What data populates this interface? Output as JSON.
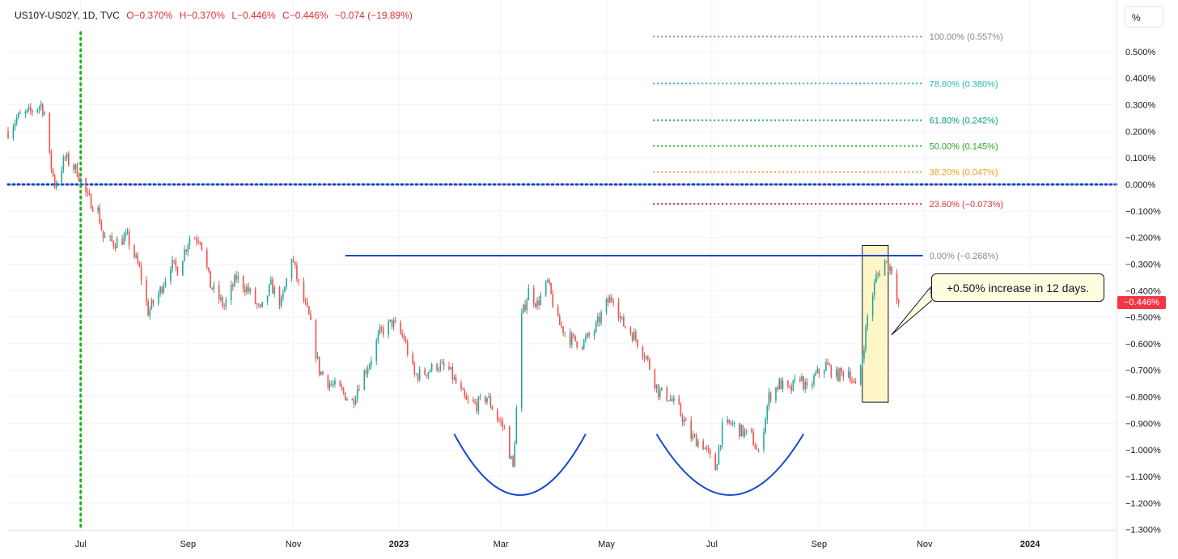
{
  "header": {
    "symbol": "US10Y-US02Y, 1D, TVC",
    "open": "O−0.370%",
    "high": "H−0.370%",
    "low": "L−0.446%",
    "close": "C−0.446%",
    "change": "−0.074 (−19.89%)"
  },
  "unit_label": "%",
  "last_price_label": "−0.446%",
  "callout_text": "+0.50% increase in 12 days.",
  "colors": {
    "up": "#26a69a",
    "down": "#ef5350",
    "annotation": "#1848d0",
    "zero_line": "#1848d0",
    "event_line": "#22b022",
    "callout_fill": "#fffde0",
    "price_tag": "#f23645"
  },
  "chart_data": {
    "type": "candlestick",
    "title": "",
    "xlabel": "",
    "ylabel": "",
    "ylim": [
      -1.3,
      0.6
    ],
    "y_ticks": [
      {
        "value": 0.5,
        "label": "0.500%"
      },
      {
        "value": 0.4,
        "label": "0.400%"
      },
      {
        "value": 0.3,
        "label": "0.300%"
      },
      {
        "value": 0.2,
        "label": "0.200%"
      },
      {
        "value": 0.1,
        "label": "0.100%"
      },
      {
        "value": 0.0,
        "label": "0.000%"
      },
      {
        "value": -0.1,
        "label": "−0.100%"
      },
      {
        "value": -0.2,
        "label": "−0.200%"
      },
      {
        "value": -0.3,
        "label": "−0.300%"
      },
      {
        "value": -0.4,
        "label": "−0.400%"
      },
      {
        "value": -0.5,
        "label": "−0.500%"
      },
      {
        "value": -0.6,
        "label": "−0.600%"
      },
      {
        "value": -0.7,
        "label": "−0.700%"
      },
      {
        "value": -0.8,
        "label": "−0.800%"
      },
      {
        "value": -0.9,
        "label": "−0.900%"
      },
      {
        "value": -1.0,
        "label": "−1.000%"
      },
      {
        "value": -1.1,
        "label": "−1.100%"
      },
      {
        "value": -1.2,
        "label": "−1.200%"
      },
      {
        "value": -1.3,
        "label": "−1.300%"
      }
    ],
    "x_range": [
      "2022-05-20",
      "2024-02-20"
    ],
    "x_ticks": [
      {
        "date": "2022-07-01",
        "label": "Jul"
      },
      {
        "date": "2022-09-01",
        "label": "Sep"
      },
      {
        "date": "2022-11-01",
        "label": "Nov"
      },
      {
        "date": "2023-01-01",
        "label": "2023"
      },
      {
        "date": "2023-03-01",
        "label": "Mar"
      },
      {
        "date": "2023-05-01",
        "label": "May"
      },
      {
        "date": "2023-07-01",
        "label": "Jul"
      },
      {
        "date": "2023-09-01",
        "label": "Sep"
      },
      {
        "date": "2023-11-01",
        "label": "Nov"
      },
      {
        "date": "2024-01-01",
        "label": "2024"
      }
    ],
    "series_path": [
      [
        "2022-05-20",
        0.2
      ],
      [
        "2022-05-25",
        0.25
      ],
      [
        "2022-06-01",
        0.27
      ],
      [
        "2022-06-08",
        0.3
      ],
      [
        "2022-06-10",
        0.27
      ],
      [
        "2022-06-13",
        0.1
      ],
      [
        "2022-06-16",
        0.0
      ],
      [
        "2022-06-22",
        0.1
      ],
      [
        "2022-06-29",
        0.05
      ],
      [
        "2022-07-05",
        -0.05
      ],
      [
        "2022-07-11",
        -0.1
      ],
      [
        "2022-07-14",
        -0.2
      ],
      [
        "2022-07-20",
        -0.22
      ],
      [
        "2022-07-28",
        -0.2
      ],
      [
        "2022-08-04",
        -0.32
      ],
      [
        "2022-08-09",
        -0.48
      ],
      [
        "2022-08-16",
        -0.4
      ],
      [
        "2022-08-22",
        -0.3
      ],
      [
        "2022-08-26",
        -0.32
      ],
      [
        "2022-09-02",
        -0.2
      ],
      [
        "2022-09-08",
        -0.2
      ],
      [
        "2022-09-14",
        -0.38
      ],
      [
        "2022-09-22",
        -0.46
      ],
      [
        "2022-09-29",
        -0.35
      ],
      [
        "2022-10-06",
        -0.4
      ],
      [
        "2022-10-13",
        -0.48
      ],
      [
        "2022-10-19",
        -0.38
      ],
      [
        "2022-10-25",
        -0.45
      ],
      [
        "2022-10-31",
        -0.27
      ],
      [
        "2022-11-04",
        -0.38
      ],
      [
        "2022-11-10",
        -0.5
      ],
      [
        "2022-11-16",
        -0.7
      ],
      [
        "2022-11-22",
        -0.75
      ],
      [
        "2022-11-29",
        -0.78
      ],
      [
        "2022-12-05",
        -0.82
      ],
      [
        "2022-12-09",
        -0.75
      ],
      [
        "2022-12-15",
        -0.67
      ],
      [
        "2022-12-21",
        -0.56
      ],
      [
        "2022-12-28",
        -0.52
      ],
      [
        "2023-01-04",
        -0.58
      ],
      [
        "2023-01-10",
        -0.72
      ],
      [
        "2023-01-16",
        -0.71
      ],
      [
        "2023-01-23",
        -0.68
      ],
      [
        "2023-01-30",
        -0.7
      ],
      [
        "2023-02-03",
        -0.75
      ],
      [
        "2023-02-09",
        -0.82
      ],
      [
        "2023-02-15",
        -0.83
      ],
      [
        "2023-02-21",
        -0.8
      ],
      [
        "2023-02-27",
        -0.88
      ],
      [
        "2023-03-03",
        -0.92
      ],
      [
        "2023-03-08",
        -1.07
      ],
      [
        "2023-03-10",
        -0.85
      ],
      [
        "2023-03-13",
        -0.5
      ],
      [
        "2023-03-17",
        -0.4
      ],
      [
        "2023-03-22",
        -0.45
      ],
      [
        "2023-03-28",
        -0.37
      ],
      [
        "2023-04-03",
        -0.52
      ],
      [
        "2023-04-10",
        -0.58
      ],
      [
        "2023-04-17",
        -0.6
      ],
      [
        "2023-04-24",
        -0.55
      ],
      [
        "2023-05-01",
        -0.45
      ],
      [
        "2023-05-05",
        -0.42
      ],
      [
        "2023-05-10",
        -0.52
      ],
      [
        "2023-05-17",
        -0.57
      ],
      [
        "2023-05-24",
        -0.65
      ],
      [
        "2023-05-31",
        -0.78
      ],
      [
        "2023-06-06",
        -0.8
      ],
      [
        "2023-06-12",
        -0.85
      ],
      [
        "2023-06-19",
        -0.95
      ],
      [
        "2023-06-26",
        -0.98
      ],
      [
        "2023-07-03",
        -1.07
      ],
      [
        "2023-07-07",
        -0.92
      ],
      [
        "2023-07-12",
        -0.9
      ],
      [
        "2023-07-18",
        -0.93
      ],
      [
        "2023-07-24",
        -0.95
      ],
      [
        "2023-07-28",
        -1.02
      ],
      [
        "2023-08-03",
        -0.8
      ],
      [
        "2023-08-09",
        -0.75
      ],
      [
        "2023-08-15",
        -0.78
      ],
      [
        "2023-08-21",
        -0.72
      ],
      [
        "2023-08-25",
        -0.78
      ],
      [
        "2023-08-30",
        -0.72
      ],
      [
        "2023-09-05",
        -0.68
      ],
      [
        "2023-09-11",
        -0.72
      ],
      [
        "2023-09-18",
        -0.7
      ],
      [
        "2023-09-22",
        -0.77
      ],
      [
        "2023-09-26",
        -0.65
      ],
      [
        "2023-09-29",
        -0.5
      ],
      [
        "2023-10-04",
        -0.35
      ],
      [
        "2023-10-09",
        -0.29
      ],
      [
        "2023-10-13",
        -0.32
      ],
      [
        "2023-10-17",
        -0.446
      ]
    ],
    "last_value": -0.446,
    "zero_line": 0.0,
    "vertical_event_date": "2022-07-01",
    "fibonacci_levels": [
      {
        "ratio": "100.00%",
        "value": 0.557,
        "label": "100.00% (0.557%)",
        "color": "#888888"
      },
      {
        "ratio": "78.60%",
        "value": 0.38,
        "label": "78.60% (0.380%)",
        "color": "#22b8b0"
      },
      {
        "ratio": "61.80%",
        "value": 0.242,
        "label": "61.80% (0.242%)",
        "color": "#0d9f7f"
      },
      {
        "ratio": "50.00%",
        "value": 0.145,
        "label": "50.00% (0.145%)",
        "color": "#2aa82a"
      },
      {
        "ratio": "38.20%",
        "value": 0.047,
        "label": "38.20% (0.047%)",
        "color": "#f0a020"
      },
      {
        "ratio": "23.60%",
        "value": -0.073,
        "label": "23.60% (−0.073%)",
        "color": "#e03040"
      },
      {
        "ratio": "0.00%",
        "value": -0.268,
        "label": "0.00% (−0.268%)",
        "color": "#888888"
      }
    ],
    "fib_start_date": "2023-05-28",
    "fib_end_date": "2023-10-31",
    "resistance_line": {
      "value": -0.268,
      "start_date": "2022-12-01",
      "end_date": "2023-10-31"
    },
    "highlight_box": {
      "start_date": "2023-09-26",
      "end_date": "2023-10-11",
      "top": -0.23,
      "bottom": -0.82
    },
    "arcs": [
      {
        "start_date": "2023-02-02",
        "end_date": "2023-04-19",
        "top": -0.94,
        "bottom": -1.17
      },
      {
        "start_date": "2023-05-30",
        "end_date": "2023-08-23",
        "top": -0.94,
        "bottom": -1.17
      }
    ],
    "grid": true,
    "legend": "none"
  }
}
